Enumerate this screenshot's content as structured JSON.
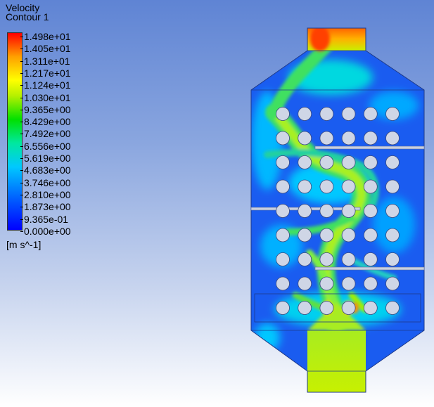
{
  "legend": {
    "title_line1": "Velocity",
    "title_line2": "Contour 1",
    "ticks": [
      "1.498e+01",
      "1.405e+01",
      "1.311e+01",
      "1.217e+01",
      "1.124e+01",
      "1.030e+01",
      "9.365e+00",
      "8.429e+00",
      "7.492e+00",
      "6.556e+00",
      "5.619e+00",
      "4.683e+00",
      "3.746e+00",
      "2.810e+00",
      "1.873e+00",
      "9.365e-01",
      "0.000e+00"
    ],
    "units": "[m s^-1]"
  },
  "tube_rows": 9,
  "tube_cols": 6,
  "baffles": 3
}
